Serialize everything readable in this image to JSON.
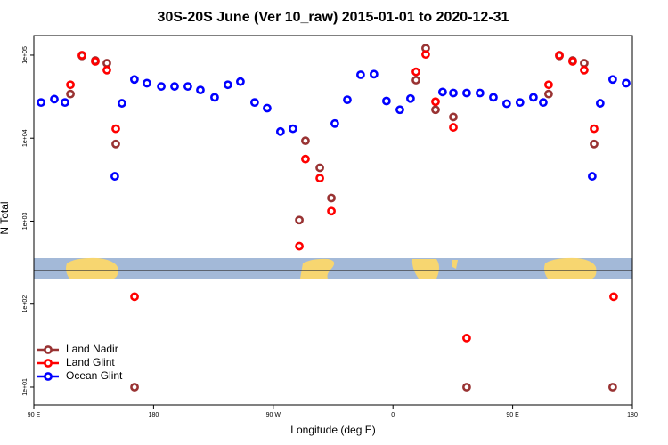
{
  "chart_data": {
    "type": "scatter",
    "title": "30S-20S June (Ver 10_raw)   2015-01-01 to 2020-12-31",
    "x_label": "Longitude (deg E)",
    "y_label": "N Total",
    "xlim": [
      90,
      540
    ],
    "ylim": [
      6.1,
      172000
    ],
    "y_log": true,
    "grid": false,
    "legend": "bottom-left",
    "xticks": [
      {
        "value": 90,
        "label": "90 E"
      },
      {
        "value": 180,
        "label": "180"
      },
      {
        "value": 270,
        "label": "90 W"
      },
      {
        "value": 360,
        "label": "0"
      },
      {
        "value": 450,
        "label": "90 E"
      },
      {
        "value": 540,
        "label": "180"
      }
    ],
    "yticks": [
      {
        "value": 10,
        "label": "1e+01"
      },
      {
        "value": 100,
        "label": "1e+02"
      },
      {
        "value": 1000,
        "label": "1e+03"
      },
      {
        "value": 10000,
        "label": "1e+04"
      },
      {
        "value": 100000,
        "label": "1e+05"
      }
    ],
    "series": [
      {
        "name": "Land Nadir",
        "color": "#993333",
        "x": [
          117.5,
          126.2,
          136.2,
          144.9,
          151.6,
          165.7,
          289.6,
          294.2,
          305,
          313.7,
          377.3,
          384.6,
          392,
          405.4,
          415.4,
          477,
          485.1,
          495.1,
          503.8,
          511.2,
          525.2
        ],
        "values": [
          34000,
          98000,
          86000,
          80000,
          8500,
          10,
          1030,
          9300,
          4400,
          1900,
          50000,
          121000,
          22000,
          18000,
          10,
          34000,
          98000,
          86000,
          80000,
          8500,
          10
        ]
      },
      {
        "name": "Land Glint",
        "color": "#ff0000",
        "x": [
          117.5,
          126.2,
          136.2,
          144.9,
          151.6,
          165.7,
          289.6,
          294.2,
          305,
          313.7,
          377.3,
          384.6,
          392,
          405.4,
          415.4,
          477,
          485.1,
          495.1,
          503.8,
          511.2,
          525.9
        ],
        "values": [
          44000,
          100000,
          84000,
          66000,
          13000,
          123,
          500,
          5600,
          3300,
          1320,
          63000,
          102000,
          27500,
          13500,
          39,
          44000,
          100000,
          84000,
          66000,
          13000,
          123
        ]
      },
      {
        "name": "Ocean Glint",
        "color": "#0000ff",
        "x": [
          95.4,
          105.4,
          113.4,
          150.9,
          156.2,
          165.6,
          175,
          185.8,
          195.8,
          205.8,
          215.2,
          225.9,
          235.9,
          245.3,
          256,
          265.4,
          275.4,
          284.8,
          316.3,
          325.7,
          335.7,
          345.7,
          355.1,
          365.2,
          373.2,
          397.3,
          405.4,
          415.4,
          425.4,
          435.5,
          445.5,
          455.5,
          465.6,
          473,
          509.8,
          515.8,
          525.2,
          535.3
        ],
        "values": [
          26900,
          29500,
          26900,
          3470,
          26300,
          51000,
          46000,
          42000,
          42000,
          42000,
          38000,
          31000,
          44000,
          48000,
          26900,
          23000,
          12000,
          13000,
          15000,
          29000,
          58000,
          59000,
          28000,
          22000,
          30000,
          36000,
          35000,
          35000,
          35000,
          31000,
          26000,
          26900,
          31000,
          26900,
          3470,
          26300,
          51000,
          46000
        ]
      }
    ]
  }
}
